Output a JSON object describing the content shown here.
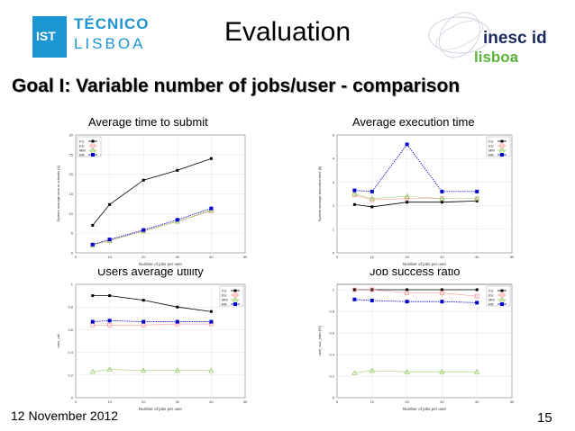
{
  "slide": {
    "title": "Evaluation",
    "goal": "Goal I: Variable number of jobs/user - comparison",
    "date": "12 November 2012",
    "page": "15"
  },
  "logos": {
    "tecnico": "TÉCNICO",
    "lisboa": "LISBOA",
    "inesc": "inesc id",
    "inesc_lisboa": "lisboa",
    "ist_mark": "IST"
  },
  "colors": {
    "fu": "#000000",
    "eu": "#ff9999",
    "mm": "#99cc66",
    "rr": "#0000cc"
  },
  "chart_data": [
    {
      "type": "line",
      "title": "Average time to submit",
      "xlabel": "Number of jobs per user",
      "ylabel": "System average time to submits [s]",
      "xlim": [
        0,
        50
      ],
      "ylim": [
        0,
        30
      ],
      "xticks": [
        0,
        10,
        20,
        30,
        40,
        50
      ],
      "yticks": [
        0,
        5,
        10,
        15,
        20,
        25,
        30
      ],
      "legend": "top-left",
      "x": [
        5,
        10,
        20,
        30,
        40
      ],
      "series": [
        {
          "name": "FU",
          "values": [
            7,
            12.3,
            18.5,
            21,
            24
          ]
        },
        {
          "name": "EU",
          "values": [
            2,
            3.2,
            5.6,
            8,
            10.7
          ]
        },
        {
          "name": "MM",
          "values": [
            2,
            3.1,
            5.5,
            8,
            10.9
          ]
        },
        {
          "name": "RR",
          "values": [
            2.1,
            3.4,
            5.8,
            8.4,
            11.3
          ]
        }
      ]
    },
    {
      "type": "line",
      "title": "Average execution time",
      "xlabel": "Number of jobs per user",
      "ylabel": "System average execution time [h]",
      "xlim": [
        0,
        50
      ],
      "ylim": [
        0,
        5
      ],
      "xticks": [
        0,
        10,
        20,
        30,
        40,
        50
      ],
      "yticks": [
        0,
        1,
        2,
        3,
        4,
        5
      ],
      "legend": "top-right",
      "x": [
        5,
        10,
        20,
        30,
        40
      ],
      "series": [
        {
          "name": "FU",
          "values": [
            2.05,
            1.95,
            2.15,
            2.15,
            2.2
          ]
        },
        {
          "name": "EU",
          "values": [
            2.45,
            2.25,
            2.3,
            2.3,
            2.3
          ]
        },
        {
          "name": "MM",
          "values": [
            2.5,
            2.3,
            2.4,
            2.3,
            2.3
          ]
        },
        {
          "name": "RR",
          "values": [
            2.65,
            2.6,
            4.6,
            2.6,
            2.6
          ]
        }
      ]
    },
    {
      "type": "line",
      "title": "Users average utility",
      "xlabel": "Number of jobs per user",
      "ylabel": "user_util",
      "xlim": [
        0,
        50
      ],
      "ylim": [
        0,
        1
      ],
      "xticks": [
        0,
        10,
        20,
        30,
        40,
        50
      ],
      "yticks": [
        0,
        0.2,
        0.4,
        0.6,
        0.8,
        1
      ],
      "legend": "top-right",
      "x": [
        5,
        10,
        20,
        30,
        40
      ],
      "series": [
        {
          "name": "FU",
          "values": [
            0.9,
            0.9,
            0.86,
            0.8,
            0.76
          ]
        },
        {
          "name": "EU",
          "values": [
            0.64,
            0.64,
            0.64,
            0.65,
            0.65
          ]
        },
        {
          "name": "MM",
          "values": [
            0.23,
            0.25,
            0.24,
            0.24,
            0.24
          ]
        },
        {
          "name": "RR",
          "values": [
            0.67,
            0.68,
            0.67,
            0.67,
            0.67
          ]
        }
      ]
    },
    {
      "type": "line",
      "title": "Job success ratio",
      "xlabel": "Number of jobs per user",
      "ylabel": "user_suc_ratio [%]",
      "xlim": [
        0,
        50
      ],
      "ylim": [
        0,
        1.05
      ],
      "xticks": [
        0,
        10,
        20,
        30,
        40,
        50
      ],
      "yticks": [
        0,
        0.2,
        0.4,
        0.6,
        0.8,
        1
      ],
      "legend": "top-right",
      "x": [
        5,
        10,
        20,
        30,
        40
      ],
      "series": [
        {
          "name": "FU",
          "values": [
            1,
            1,
            1,
            1,
            1
          ]
        },
        {
          "name": "EU",
          "values": [
            1,
            1,
            0.97,
            0.97,
            0.94
          ]
        },
        {
          "name": "MM",
          "values": [
            0.23,
            0.25,
            0.24,
            0.24,
            0.24
          ]
        },
        {
          "name": "RR",
          "values": [
            0.91,
            0.9,
            0.89,
            0.89,
            0.88
          ]
        }
      ]
    }
  ]
}
